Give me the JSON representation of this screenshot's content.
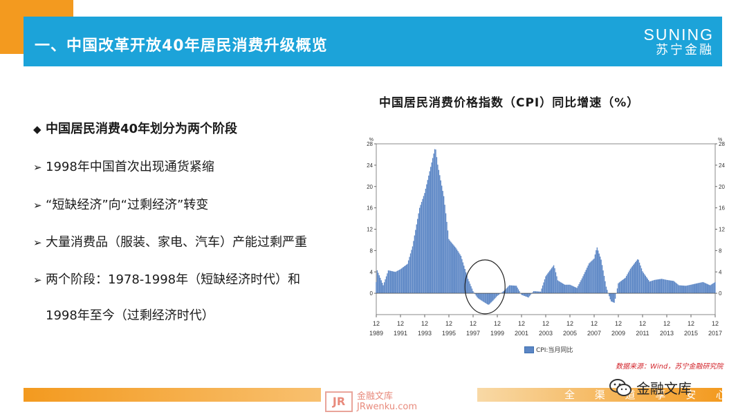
{
  "header": {
    "title": "一、中国改革开放40年居民消费升级概览",
    "logo_en": "SUNING",
    "logo_cn": "苏宁金融"
  },
  "content": {
    "heading_marker": "◆",
    "heading": "中国居民消费40年划分为两个阶段",
    "bullet_marker": "➢",
    "bullets": [
      "1998年中国首次出现通货紧缩",
      "“短缺经济”向“过剩经济”转变",
      "大量消费品（服装、家电、汽车）产能过剩严重",
      "两个阶段：1978-1998年（短缺经济时代）和",
      "1998年至今（过剩经济时代）"
    ]
  },
  "chart_data": {
    "type": "bar",
    "title": "中国居民消费价格指数（CPI）同比增速（%）",
    "unit_label": "%",
    "legend": "CPI:当月同比",
    "x_tick_months": [
      "12",
      "12",
      "12",
      "12",
      "12",
      "12",
      "12",
      "12",
      "12",
      "12",
      "12",
      "12",
      "12",
      "12",
      "12"
    ],
    "x_tick_years": [
      "1989",
      "1991",
      "1993",
      "1995",
      "1997",
      "1999",
      "2001",
      "2003",
      "2005",
      "2007",
      "2009",
      "2011",
      "2013",
      "2015",
      "2017"
    ],
    "y_ticks": [
      "28",
      "24",
      "20",
      "16",
      "12",
      "8",
      "4",
      "0"
    ],
    "ylim": [
      -4,
      28
    ],
    "x_range": [
      1989.917,
      2017.917
    ],
    "series": [
      {
        "name": "CPI:当月同比",
        "color": "#5b86c5",
        "points": [
          [
            1989.92,
            6.4
          ],
          [
            1990.0,
            4.3
          ],
          [
            1990.5,
            1.5
          ],
          [
            1990.92,
            4.3
          ],
          [
            1991.5,
            4.0
          ],
          [
            1991.92,
            4.5
          ],
          [
            1992.5,
            5.5
          ],
          [
            1992.92,
            8.8
          ],
          [
            1993.5,
            16.0
          ],
          [
            1993.92,
            18.8
          ],
          [
            1994.5,
            24.5
          ],
          [
            1994.8,
            27.5
          ],
          [
            1995.0,
            24.1
          ],
          [
            1995.5,
            18.2
          ],
          [
            1995.92,
            10.1
          ],
          [
            1996.5,
            8.5
          ],
          [
            1996.92,
            7.0
          ],
          [
            1997.5,
            2.7
          ],
          [
            1997.92,
            0.4
          ],
          [
            1998.3,
            -0.9
          ],
          [
            1998.7,
            -1.5
          ],
          [
            1999.2,
            -2.2
          ],
          [
            1999.6,
            -1.3
          ],
          [
            1999.92,
            -0.5
          ],
          [
            2000.5,
            0.5
          ],
          [
            2000.92,
            1.5
          ],
          [
            2001.5,
            1.4
          ],
          [
            2001.92,
            -0.3
          ],
          [
            2002.5,
            -0.8
          ],
          [
            2002.92,
            0.4
          ],
          [
            2003.5,
            0.3
          ],
          [
            2003.92,
            3.2
          ],
          [
            2004.6,
            5.3
          ],
          [
            2004.92,
            2.4
          ],
          [
            2005.5,
            1.6
          ],
          [
            2005.92,
            1.6
          ],
          [
            2006.5,
            1.0
          ],
          [
            2006.92,
            2.8
          ],
          [
            2007.5,
            5.6
          ],
          [
            2007.92,
            6.5
          ],
          [
            2008.15,
            8.7
          ],
          [
            2008.5,
            6.3
          ],
          [
            2008.92,
            1.2
          ],
          [
            2009.3,
            -1.5
          ],
          [
            2009.6,
            -1.8
          ],
          [
            2009.92,
            1.9
          ],
          [
            2010.5,
            2.9
          ],
          [
            2010.92,
            4.6
          ],
          [
            2011.55,
            6.5
          ],
          [
            2011.92,
            4.1
          ],
          [
            2012.5,
            2.2
          ],
          [
            2012.92,
            2.5
          ],
          [
            2013.5,
            2.7
          ],
          [
            2013.92,
            2.5
          ],
          [
            2014.5,
            2.3
          ],
          [
            2014.92,
            1.5
          ],
          [
            2015.5,
            1.4
          ],
          [
            2015.92,
            1.6
          ],
          [
            2016.5,
            1.9
          ],
          [
            2016.92,
            2.1
          ],
          [
            2017.5,
            1.5
          ],
          [
            2017.92,
            2.1
          ]
        ]
      }
    ],
    "annotation": "circle around the 1997-1999 deflation period",
    "source": "数据来源：Wind，苏宁金融研究院"
  },
  "footer": {
    "slogan": "全 渠 道   享 安 心",
    "watermark_logo": "JR",
    "watermark_cn": "金融文库",
    "watermark_url": "JRwenku.com",
    "wechat_name": "金融文库"
  }
}
